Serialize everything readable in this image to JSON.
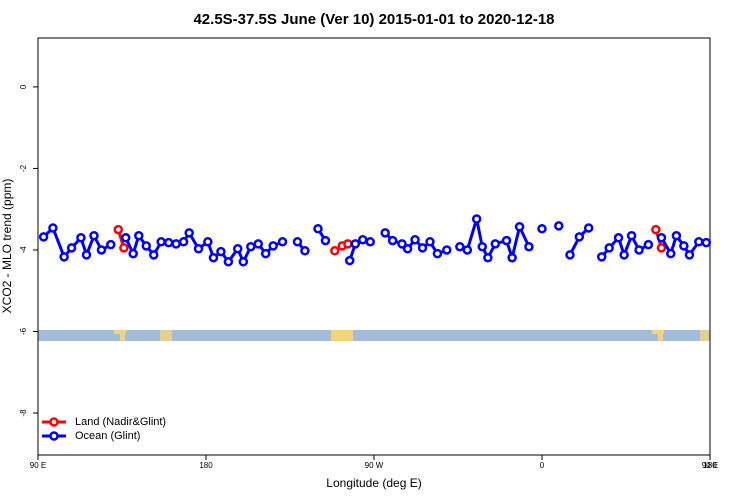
{
  "chart_data": {
    "type": "line",
    "title": "42.5S-37.5S June (Ver 10)   2015-01-01 to 2020-12-18",
    "x_label": "Longitude (deg E)",
    "y_label": "XCO2 - MLO trend (ppm)",
    "xlim": [
      90,
      450
    ],
    "ylim": [
      -9.03,
      1.2
    ],
    "xticks": [
      {
        "value": 90,
        "label": "90 E"
      },
      180,
      {
        "value": 270,
        "label": "90 W"
      },
      {
        "value": 360,
        "label": "0"
      },
      {
        "value": 450,
        "label": "90 E"
      },
      {
        "value": 540,
        "label": "180"
      }
    ],
    "yticks": [
      0,
      -2,
      -4,
      -6,
      -8
    ],
    "legend": "bottom-left",
    "series": [
      {
        "name": "Land (Nadir&Glint)",
        "color": "#ff0000",
        "x": [
          133,
          136,
          null,
          249,
          253,
          256,
          null,
          421,
          424
        ],
        "values": [
          -3.5,
          -3.95,
          null,
          -4.02,
          -3.9,
          -3.85,
          null,
          -3.5,
          -3.95
        ]
      },
      {
        "name": "Ocean (Glint)",
        "color": "#0000ff",
        "x": [
          93,
          98,
          104,
          108,
          113,
          116,
          120,
          124,
          129,
          null,
          137,
          141,
          144,
          148,
          152,
          156,
          160,
          164,
          168,
          171,
          176,
          181,
          184,
          188,
          192,
          197,
          200,
          204,
          208,
          212,
          216,
          221,
          null,
          229,
          233,
          null,
          240,
          244,
          null,
          257,
          260,
          264,
          268,
          null,
          276,
          280,
          285,
          288,
          292,
          296,
          300,
          304,
          309,
          null,
          316,
          320,
          325,
          328,
          331,
          335,
          341,
          344,
          348,
          353,
          null,
          360,
          null,
          369,
          null,
          375,
          380,
          385,
          null,
          392,
          396,
          401,
          404,
          408,
          412,
          417,
          null,
          424,
          429,
          432,
          436,
          439,
          444,
          448
        ],
        "values": [
          -3.68,
          -3.46,
          -4.17,
          -3.95,
          -3.7,
          -4.12,
          -3.65,
          -4.0,
          -3.87,
          null,
          -3.7,
          -4.09,
          -3.65,
          -3.9,
          -4.12,
          -3.8,
          -3.82,
          -3.85,
          -3.8,
          -3.58,
          -3.97,
          -3.8,
          -4.19,
          -4.04,
          -4.29,
          -3.97,
          -4.29,
          -3.92,
          -3.85,
          -4.09,
          -3.9,
          -3.8,
          null,
          -3.8,
          -4.02,
          null,
          -3.48,
          -3.77,
          null,
          -4.26,
          -3.85,
          -3.75,
          -3.8,
          null,
          -3.58,
          -3.77,
          -3.85,
          -3.97,
          -3.75,
          -3.95,
          -3.8,
          -4.09,
          -4.0,
          null,
          -3.92,
          -4.0,
          -3.24,
          -3.92,
          -4.19,
          -3.85,
          -3.77,
          -4.19,
          -3.43,
          -3.92,
          null,
          -3.48,
          null,
          -3.41,
          null,
          -4.12,
          -3.68,
          -3.46,
          null,
          -4.17,
          -3.95,
          -3.7,
          -4.12,
          -3.65,
          -4.0,
          -3.87,
          null,
          -3.7,
          -4.09,
          -3.65,
          -3.9,
          -4.12,
          -3.8,
          -3.82
        ]
      }
    ]
  }
}
